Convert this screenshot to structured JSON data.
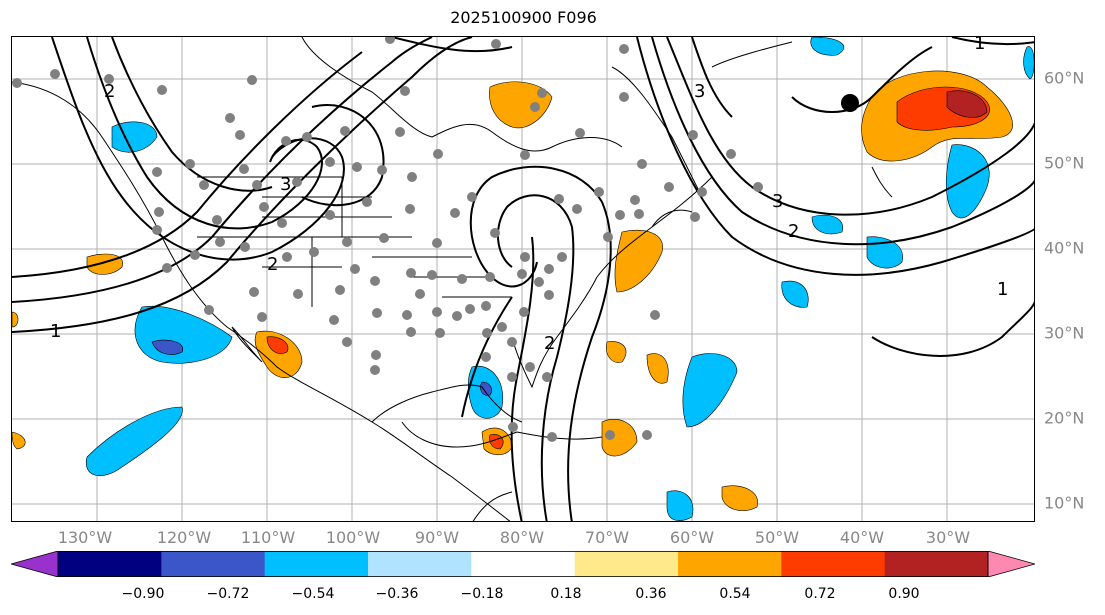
{
  "title": "2025100900 F096",
  "lon_labels": [
    "130°W",
    "120°W",
    "110°W",
    "100°W",
    "90°W",
    "80°W",
    "70°W",
    "60°W",
    "50°W",
    "40°W",
    "30°W"
  ],
  "lat_labels": [
    "60°N",
    "50°N",
    "40°N",
    "30°N",
    "20°N",
    "10°N"
  ],
  "contour_labels": [
    "1",
    "2",
    "3",
    "2",
    "1",
    "2",
    "3",
    "1",
    "2",
    "3"
  ],
  "colorbar": {
    "tick_labels": [
      "−0.90",
      "−0.72",
      "−0.54",
      "−0.36",
      "−0.18",
      "0.18",
      "0.36",
      "0.54",
      "0.72",
      "0.90"
    ],
    "colors": [
      "#9932cc",
      "#000080",
      "#3a56c8",
      "#00bfff",
      "#afe3ff",
      "#ffffff",
      "#ffe98a",
      "#ffa500",
      "#ff3c00",
      "#b22222",
      "#ff88b0"
    ]
  }
}
